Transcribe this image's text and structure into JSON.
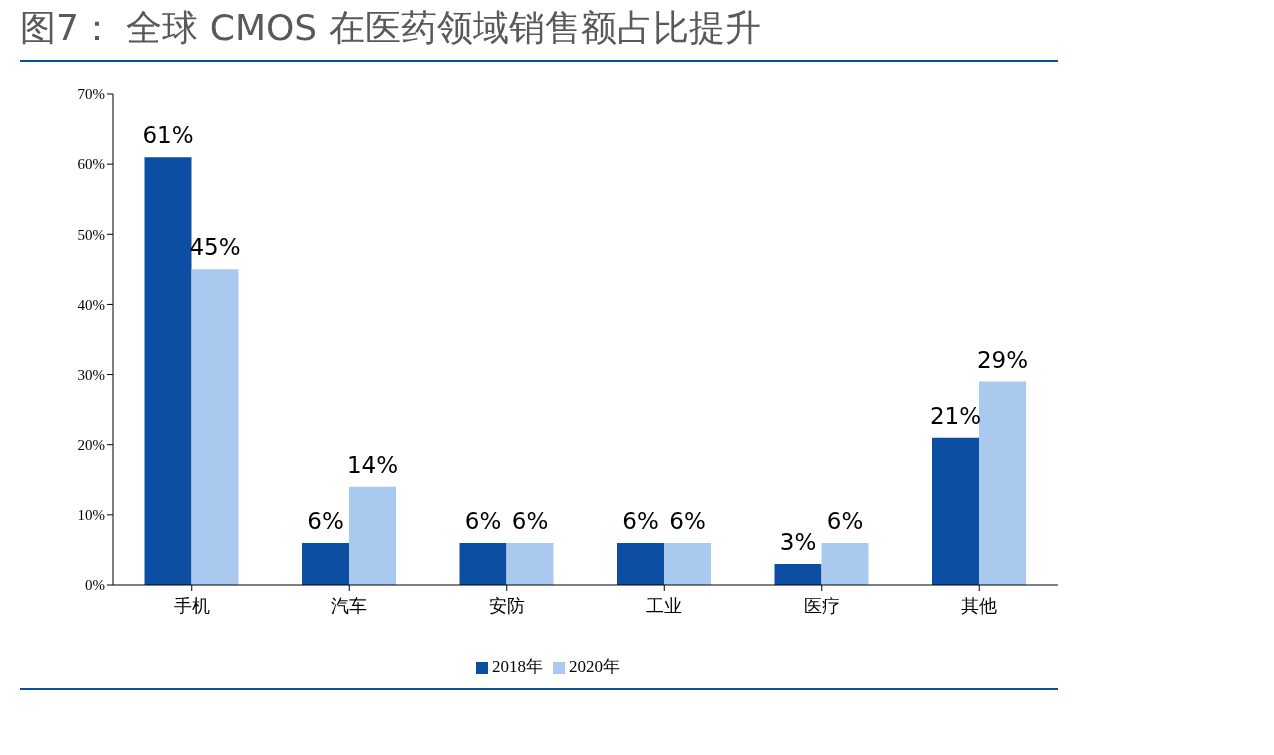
{
  "chart_data": {
    "type": "bar",
    "title": "图7： 全球 CMOS 在医药领域销售额占比提升",
    "categories": [
      "手机",
      "汽车",
      "安防",
      "工业",
      "医疗",
      "其他"
    ],
    "series": [
      {
        "name": "2018年",
        "color": "#0b4ea2",
        "values": [
          61,
          6,
          6,
          6,
          3,
          21
        ],
        "value_labels": [
          "61%",
          "6%",
          "6%",
          "6%",
          "3%",
          "21%"
        ]
      },
      {
        "name": "2020年",
        "color": "#a9c9ee",
        "values": [
          45,
          14,
          6,
          6,
          6,
          29
        ],
        "value_labels": [
          "45%",
          "14%",
          "6%",
          "6%",
          "6%",
          "29%"
        ]
      }
    ],
    "ylim": [
      0,
      70
    ],
    "yticks": [
      {
        "value": 0,
        "label": "0%"
      },
      {
        "value": 10,
        "label": "10%"
      },
      {
        "value": 20,
        "label": "20%"
      },
      {
        "value": 30,
        "label": "30%"
      },
      {
        "value": 40,
        "label": "40%"
      },
      {
        "value": 50,
        "label": "50%"
      },
      {
        "value": 60,
        "label": "60%"
      },
      {
        "value": 70,
        "label": "70%"
      }
    ],
    "grid": false,
    "legend": "bottom"
  }
}
